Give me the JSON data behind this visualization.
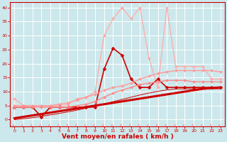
{
  "x": [
    0,
    1,
    2,
    3,
    4,
    5,
    6,
    7,
    8,
    9,
    10,
    11,
    12,
    13,
    14,
    15,
    16,
    17,
    18,
    19,
    20,
    21,
    22,
    23
  ],
  "series": [
    {
      "name": "light_pink_rafales",
      "color": "#ffaaaa",
      "linewidth": 0.9,
      "markersize": 2.0,
      "marker": "D",
      "y": [
        7.5,
        5.0,
        5.0,
        5.0,
        5.0,
        5.0,
        5.5,
        7.5,
        8.0,
        10.0,
        30.0,
        36.0,
        40.0,
        36.0,
        40.0,
        22.0,
        11.5,
        40.0,
        19.0,
        19.0,
        19.0,
        19.0,
        14.5,
        14.5
      ]
    },
    {
      "name": "dark_red_with_markers",
      "color": "#cc0000",
      "linewidth": 1.2,
      "markersize": 2.5,
      "marker": "D",
      "y": [
        4.5,
        4.5,
        4.5,
        1.0,
        4.5,
        4.5,
        4.5,
        4.5,
        4.5,
        4.5,
        18.0,
        25.5,
        23.0,
        14.5,
        11.5,
        11.5,
        14.5,
        11.5,
        11.5,
        11.5,
        11.5,
        11.5,
        11.5,
        11.5
      ]
    },
    {
      "name": "medium_pink_rising",
      "color": "#ff9999",
      "linewidth": 1.0,
      "markersize": 2.0,
      "marker": "D",
      "y": [
        5.0,
        5.0,
        5.0,
        5.0,
        5.0,
        5.5,
        6.0,
        7.0,
        8.0,
        9.0,
        10.5,
        11.5,
        12.0,
        13.0,
        14.5,
        15.5,
        16.5,
        17.0,
        17.5,
        17.5,
        17.5,
        17.5,
        17.5,
        17.0
      ]
    },
    {
      "name": "medium_pink_rising2",
      "color": "#ff8888",
      "linewidth": 1.0,
      "markersize": 2.0,
      "marker": "D",
      "y": [
        4.5,
        4.5,
        4.5,
        4.5,
        4.5,
        4.5,
        4.5,
        5.0,
        5.5,
        6.5,
        8.0,
        9.5,
        10.5,
        11.5,
        12.5,
        13.0,
        13.5,
        14.0,
        14.0,
        14.0,
        13.5,
        13.5,
        13.5,
        13.5
      ]
    },
    {
      "name": "dark_red_thick",
      "color": "#cc0000",
      "linewidth": 2.2,
      "markersize": 0,
      "marker": "",
      "y": [
        0.5,
        1.0,
        1.5,
        2.0,
        2.5,
        3.0,
        3.5,
        4.0,
        4.5,
        5.0,
        5.5,
        6.0,
        6.5,
        7.0,
        7.5,
        8.0,
        8.5,
        9.0,
        9.5,
        10.0,
        10.5,
        11.0,
        11.3,
        11.5
      ]
    },
    {
      "name": "dark_red_thin",
      "color": "#cc0000",
      "linewidth": 0.7,
      "markersize": 0,
      "marker": "",
      "y": [
        0.0,
        0.3,
        0.7,
        1.2,
        1.7,
        2.2,
        2.8,
        3.4,
        4.1,
        4.8,
        5.6,
        6.4,
        7.2,
        8.0,
        8.8,
        9.5,
        10.1,
        10.6,
        11.0,
        11.0,
        11.0,
        11.0,
        11.0,
        11.0
      ]
    }
  ],
  "xlabel": "Vent moyen/en rafales ( km/h )",
  "ylim": [
    -2.5,
    42
  ],
  "xlim": [
    -0.5,
    23.5
  ],
  "yticks": [
    0,
    5,
    10,
    15,
    20,
    25,
    30,
    35,
    40
  ],
  "xticks": [
    0,
    1,
    2,
    3,
    4,
    5,
    6,
    7,
    8,
    9,
    10,
    11,
    12,
    13,
    14,
    15,
    16,
    17,
    18,
    19,
    20,
    21,
    22,
    23
  ],
  "bg_color": "#cce8ec",
  "grid_color": "#ffffff",
  "arrow_color": "#ff9999",
  "xlabel_color": "#cc0000",
  "tick_color": "#cc0000",
  "axis_color": "#cc0000"
}
